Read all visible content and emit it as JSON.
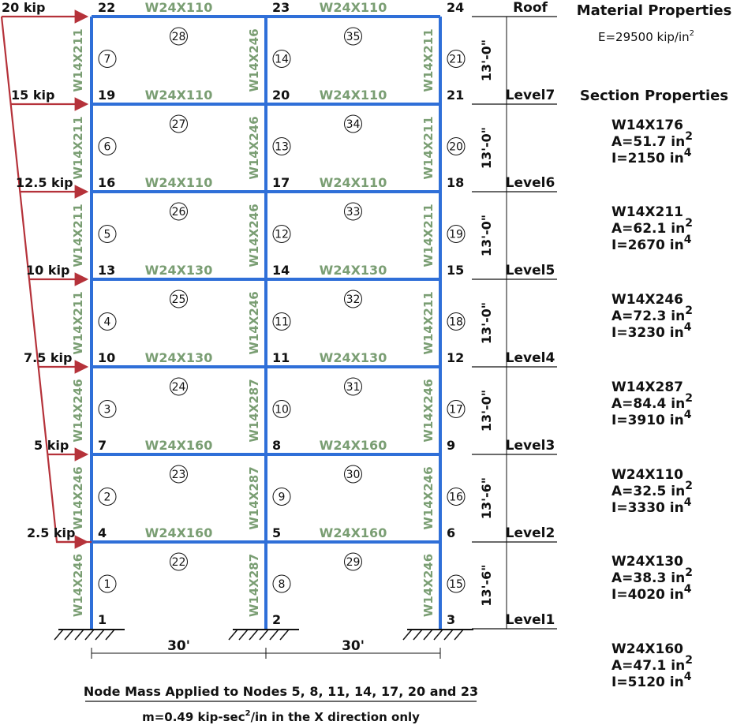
{
  "colors": {
    "frame": "#2f6fd8",
    "arrow": "#b5323a",
    "section_label": "#7a9e73",
    "text": "#111111"
  },
  "loads": [
    {
      "label": "20 kip",
      "level": "Roof"
    },
    {
      "label": "15 kip",
      "level": "Level7"
    },
    {
      "label": "12.5 kip",
      "level": "Level6"
    },
    {
      "label": "10 kip",
      "level": "Level5"
    },
    {
      "label": "7.5 kip",
      "level": "Level4"
    },
    {
      "label": "5 kip",
      "level": "Level3"
    },
    {
      "label": "2.5 kip",
      "level": "Level2"
    }
  ],
  "nodes": [
    "1",
    "2",
    "3",
    "4",
    "5",
    "6",
    "7",
    "8",
    "9",
    "10",
    "11",
    "12",
    "13",
    "14",
    "15",
    "16",
    "17",
    "18",
    "19",
    "20",
    "21",
    "22",
    "23",
    "24"
  ],
  "columns": [
    {
      "id": "1",
      "section": "W14X246"
    },
    {
      "id": "2",
      "section": "W14X246"
    },
    {
      "id": "3",
      "section": "W14X246"
    },
    {
      "id": "4",
      "section": "W14X211"
    },
    {
      "id": "5",
      "section": "W14X211"
    },
    {
      "id": "6",
      "section": "W14X211"
    },
    {
      "id": "7",
      "section": "W14X211"
    },
    {
      "id": "8",
      "section": "W14X287"
    },
    {
      "id": "9",
      "section": "W14X287"
    },
    {
      "id": "10",
      "section": "W14X287"
    },
    {
      "id": "11",
      "section": "W14X246"
    },
    {
      "id": "12",
      "section": "W14X246"
    },
    {
      "id": "13",
      "section": "W14X246"
    },
    {
      "id": "14",
      "section": "W14X246"
    },
    {
      "id": "15",
      "section": "W14X246"
    },
    {
      "id": "16",
      "section": "W14X246"
    },
    {
      "id": "17",
      "section": "W14X246"
    },
    {
      "id": "18",
      "section": "W14X211"
    },
    {
      "id": "19",
      "section": "W14X211"
    },
    {
      "id": "20",
      "section": "W14X211"
    },
    {
      "id": "21",
      "section": "W14X211"
    }
  ],
  "beams": [
    {
      "id": "22",
      "section": "W24X160"
    },
    {
      "id": "23",
      "section": "W24X160"
    },
    {
      "id": "24",
      "section": "W24X130"
    },
    {
      "id": "25",
      "section": "W24X130"
    },
    {
      "id": "26",
      "section": "W24X110"
    },
    {
      "id": "27",
      "section": "W24X110"
    },
    {
      "id": "28",
      "section": "W24X110"
    },
    {
      "id": "29",
      "section": "W24X160"
    },
    {
      "id": "30",
      "section": "W24X160"
    },
    {
      "id": "31",
      "section": "W24X130"
    },
    {
      "id": "32",
      "section": "W24X130"
    },
    {
      "id": "33",
      "section": "W24X110"
    },
    {
      "id": "34",
      "section": "W24X110"
    },
    {
      "id": "35",
      "section": "W24X110"
    }
  ],
  "levels": [
    {
      "name": "Roof",
      "height": "13'-0\""
    },
    {
      "name": "Level7",
      "height": "13'-0\""
    },
    {
      "name": "Level6",
      "height": "13'-0\""
    },
    {
      "name": "Level5",
      "height": "13'-0\""
    },
    {
      "name": "Level4",
      "height": "13'-0\""
    },
    {
      "name": "Level3",
      "height": "13'-6\""
    },
    {
      "name": "Level2",
      "height": "13'-6\""
    },
    {
      "name": "Level1",
      "height": ""
    }
  ],
  "bays": [
    "30'",
    "30'"
  ],
  "material": {
    "heading": "Material Properties",
    "e_text": "E=29500 kip/in",
    "e_exp": "2"
  },
  "sections_heading": "Section Properties",
  "sections": [
    {
      "name": "W14X176",
      "area": "A=51.7 in",
      "inertia": "I=2150 in"
    },
    {
      "name": "W14X211",
      "area": "A=62.1 in",
      "inertia": "I=2670 in"
    },
    {
      "name": "W14X246",
      "area": "A=72.3 in",
      "inertia": "I=3230 in"
    },
    {
      "name": "W14X287",
      "area": "A=84.4 in",
      "inertia": "I=3910 in"
    },
    {
      "name": "W24X110",
      "area": "A=32.5 in",
      "inertia": "I=3330 in"
    },
    {
      "name": "W24X130",
      "area": "A=38.3 in",
      "inertia": "I=4020 in"
    },
    {
      "name": "W24X160",
      "area": "A=47.1 in",
      "inertia": "I=5120 in"
    }
  ],
  "exp_area": "2",
  "exp_inertia": "4",
  "note": {
    "line1": "Node Mass Applied to Nodes 5, 8, 11, 14, 17, 20 and 23",
    "line2_a": "m=0.49 kip-sec",
    "line2_exp": "2",
    "line2_b": "/in in the X direction only"
  }
}
